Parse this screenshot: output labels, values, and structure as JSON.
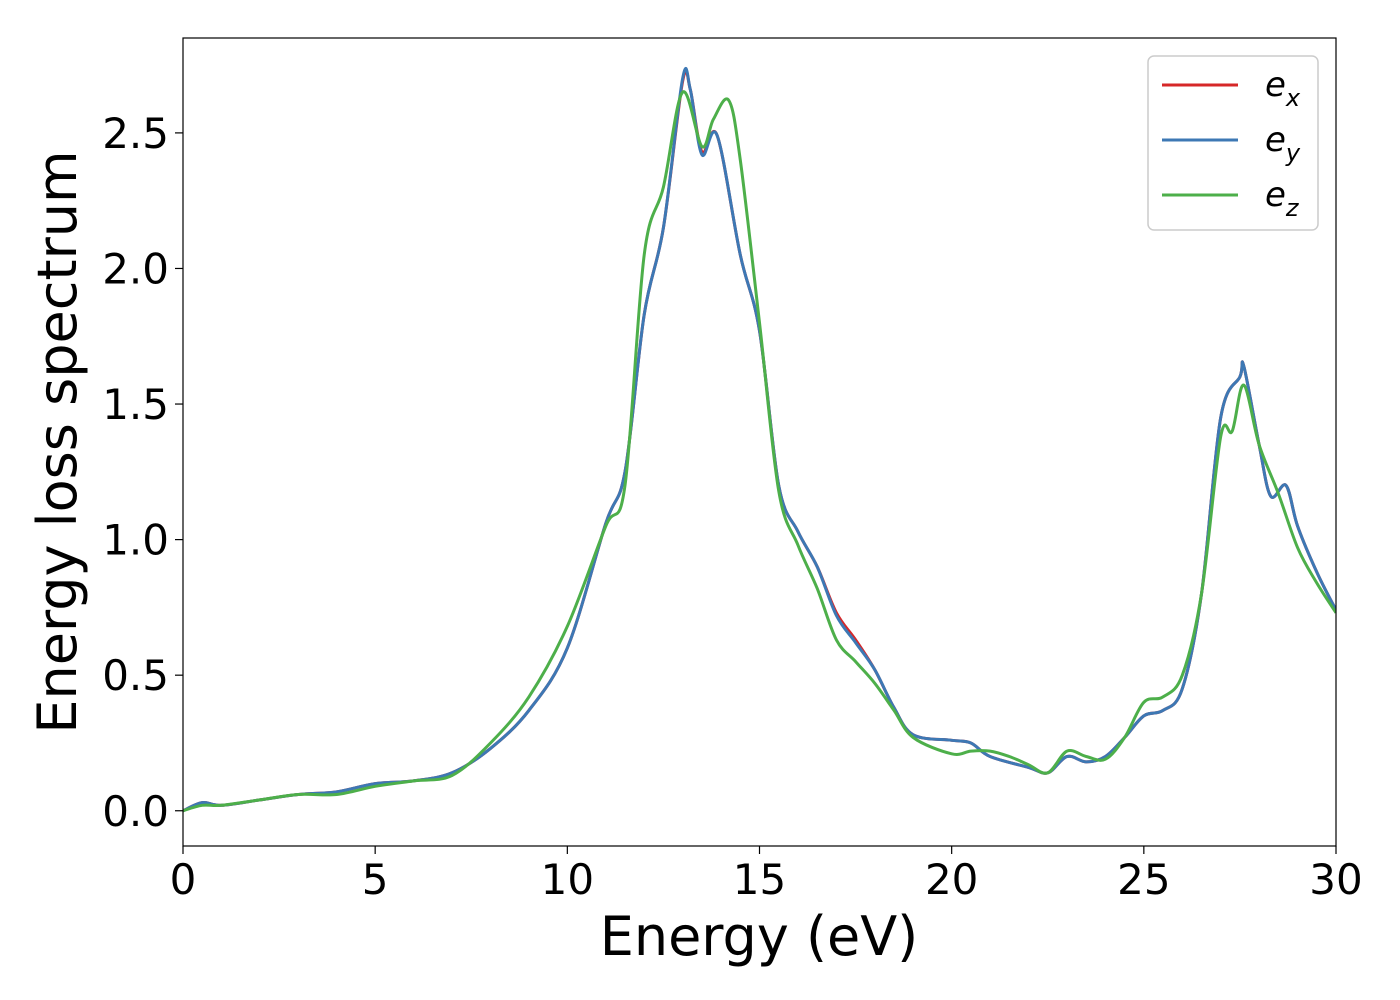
{
  "chart_data": {
    "type": "line",
    "xlabel": "Energy (eV)",
    "ylabel": "Energy loss spectrum",
    "xlim": [
      0,
      30
    ],
    "ylim": [
      -0.13,
      2.85
    ],
    "xticks": [
      0,
      5,
      10,
      15,
      20,
      25,
      30
    ],
    "xtick_labels": [
      "0",
      "5",
      "10",
      "15",
      "20",
      "25",
      "30"
    ],
    "yticks": [
      0.0,
      0.5,
      1.0,
      1.5,
      2.0,
      2.5
    ],
    "ytick_labels": [
      "0.0",
      "0.5",
      "1.0",
      "1.5",
      "2.0",
      "2.5"
    ],
    "grid": false,
    "legend_position": "top-right",
    "series": [
      {
        "name": "e",
        "subscript": "x",
        "color": "#d62728",
        "x": [
          0,
          0.5,
          1,
          2,
          3,
          4,
          5,
          6,
          7,
          8,
          9,
          10,
          11,
          11.5,
          12,
          12.5,
          13,
          13.2,
          13.5,
          13.9,
          14.5,
          15,
          15.5,
          16,
          16.5,
          17,
          17.5,
          18,
          18.5,
          19,
          20,
          20.5,
          21,
          22,
          22.5,
          23,
          23.5,
          24,
          24.5,
          25,
          25.5,
          26,
          26.5,
          27,
          27.5,
          27.6,
          28,
          28.3,
          28.7,
          29,
          29.5,
          30
        ],
        "y": [
          0.0,
          0.03,
          0.02,
          0.04,
          0.06,
          0.07,
          0.1,
          0.11,
          0.14,
          0.23,
          0.37,
          0.6,
          1.06,
          1.25,
          1.83,
          2.15,
          2.69,
          2.66,
          2.43,
          2.49,
          2.05,
          1.77,
          1.2,
          1.03,
          0.9,
          0.73,
          0.63,
          0.52,
          0.38,
          0.28,
          0.26,
          0.25,
          0.2,
          0.16,
          0.14,
          0.2,
          0.18,
          0.2,
          0.27,
          0.35,
          0.37,
          0.45,
          0.8,
          1.45,
          1.6,
          1.64,
          1.35,
          1.16,
          1.2,
          1.05,
          0.88,
          0.74
        ]
      },
      {
        "name": "e",
        "subscript": "y",
        "color": "#3d78b4",
        "x": [
          0,
          0.5,
          1,
          2,
          3,
          4,
          5,
          6,
          7,
          8,
          9,
          10,
          11,
          11.5,
          12,
          12.5,
          13,
          13.2,
          13.5,
          13.9,
          14.5,
          15,
          15.5,
          16,
          16.5,
          17,
          17.5,
          18,
          18.5,
          19,
          20,
          20.5,
          21,
          22,
          22.5,
          23,
          23.5,
          24,
          24.5,
          25,
          25.5,
          26,
          26.5,
          27,
          27.5,
          27.6,
          28,
          28.3,
          28.7,
          29,
          29.5,
          30
        ],
        "y": [
          0.0,
          0.03,
          0.02,
          0.04,
          0.06,
          0.07,
          0.1,
          0.11,
          0.14,
          0.23,
          0.37,
          0.6,
          1.06,
          1.25,
          1.83,
          2.15,
          2.7,
          2.66,
          2.42,
          2.49,
          2.05,
          1.77,
          1.2,
          1.03,
          0.9,
          0.72,
          0.62,
          0.52,
          0.38,
          0.28,
          0.26,
          0.25,
          0.2,
          0.16,
          0.14,
          0.2,
          0.18,
          0.2,
          0.27,
          0.35,
          0.37,
          0.45,
          0.8,
          1.45,
          1.6,
          1.64,
          1.35,
          1.16,
          1.2,
          1.05,
          0.88,
          0.74
        ]
      },
      {
        "name": "e",
        "subscript": "z",
        "color": "#4daf4a",
        "x": [
          0,
          0.5,
          1,
          2,
          3,
          4,
          5,
          6,
          7,
          8,
          9,
          10,
          11,
          11.5,
          12,
          12.5,
          13,
          13.5,
          13.8,
          14.2,
          14.5,
          15,
          15.5,
          16,
          16.5,
          17,
          17.5,
          18,
          18.5,
          19,
          20,
          20.5,
          21,
          21.5,
          22,
          22.5,
          23,
          23.5,
          24,
          24.5,
          25,
          25.5,
          26,
          26.5,
          27,
          27.3,
          27.6,
          28,
          28.5,
          29,
          29.5,
          30
        ],
        "y": [
          0.0,
          0.02,
          0.02,
          0.04,
          0.06,
          0.06,
          0.09,
          0.11,
          0.13,
          0.25,
          0.42,
          0.68,
          1.05,
          1.2,
          2.05,
          2.3,
          2.65,
          2.45,
          2.55,
          2.62,
          2.4,
          1.8,
          1.18,
          0.98,
          0.82,
          0.63,
          0.55,
          0.47,
          0.37,
          0.27,
          0.21,
          0.22,
          0.22,
          0.2,
          0.17,
          0.14,
          0.22,
          0.2,
          0.19,
          0.27,
          0.4,
          0.42,
          0.5,
          0.8,
          1.38,
          1.4,
          1.57,
          1.35,
          1.17,
          0.97,
          0.84,
          0.73
        ]
      }
    ]
  }
}
